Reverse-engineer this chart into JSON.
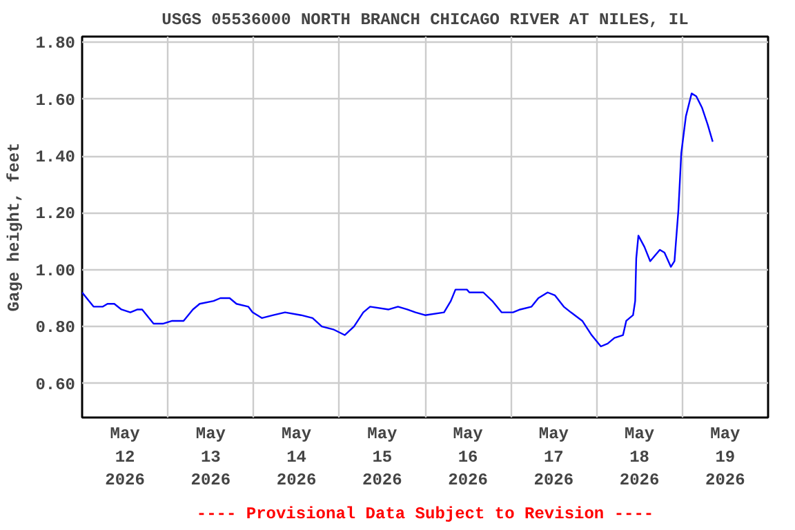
{
  "chart_data": {
    "type": "line",
    "title": "USGS 05536000 NORTH BRANCH CHICAGO RIVER AT NILES, IL",
    "ylabel": "Gage height, feet",
    "annotations": [
      "---- Provisional Data Subject to Revision ----"
    ],
    "x": [
      "2026-05-12T00:00",
      "2026-05-12T01:54",
      "2026-05-12T03:12",
      "2026-05-12T05:48",
      "2026-05-12T07:06",
      "2026-05-12T09:00",
      "2026-05-12T11:00",
      "2026-05-12T13:30",
      "2026-05-12T15:30",
      "2026-05-12T16:48",
      "2026-05-12T20:00",
      "2026-05-12T22:36",
      "2026-05-13T01:12",
      "2026-05-13T04:24",
      "2026-05-13T07:00",
      "2026-05-13T08:54",
      "2026-05-13T12:48",
      "2026-05-13T14:42",
      "2026-05-13T17:18",
      "2026-05-13T19:12",
      "2026-05-13T22:30",
      "2026-05-13T23:42",
      "2026-05-14T02:18",
      "2026-05-14T05:30",
      "2026-05-14T08:48",
      "2026-05-14T13:18",
      "2026-05-14T16:30",
      "2026-05-14T19:06",
      "2026-05-14T22:18",
      "2026-05-15T01:30",
      "2026-05-15T04:06",
      "2026-05-15T06:42",
      "2026-05-15T08:36",
      "2026-05-15T13:48",
      "2026-05-15T16:24",
      "2026-05-15T19:00",
      "2026-05-15T21:18",
      "2026-05-16T00:00",
      "2026-05-16T05:18",
      "2026-05-16T07:12",
      "2026-05-16T08:30",
      "2026-05-16T11:42",
      "2026-05-16T12:24",
      "2026-05-16T16:18",
      "2026-05-16T18:48",
      "2026-05-16T21:24",
      "2026-05-17T00:36",
      "2026-05-17T02:36",
      "2026-05-17T05:48",
      "2026-05-17T07:42",
      "2026-05-17T10:18",
      "2026-05-17T12:18",
      "2026-05-17T14:48",
      "2026-05-17T16:48",
      "2026-05-17T20:00",
      "2026-05-17T22:36",
      "2026-05-18T01:12",
      "2026-05-18T03:06",
      "2026-05-18T05:00",
      "2026-05-18T07:24",
      "2026-05-18T08:18",
      "2026-05-18T10:12",
      "2026-05-18T10:48",
      "2026-05-18T11:06",
      "2026-05-18T11:42",
      "2026-05-18T13:24",
      "2026-05-18T15:00",
      "2026-05-18T17:42",
      "2026-05-18T19:00",
      "2026-05-18T20:48",
      "2026-05-18T21:48",
      "2026-05-18T22:54",
      "2026-05-18T23:42",
      "2026-05-19T01:00",
      "2026-05-19T02:36",
      "2026-05-19T03:54",
      "2026-05-19T05:30",
      "2026-05-19T07:06",
      "2026-05-19T08:30"
    ],
    "series": [
      {
        "color": "#0000ff",
        "values": [
          0.92,
          0.89,
          0.87,
          0.87,
          0.88,
          0.88,
          0.86,
          0.85,
          0.86,
          0.86,
          0.81,
          0.81,
          0.82,
          0.82,
          0.86,
          0.88,
          0.89,
          0.9,
          0.9,
          0.88,
          0.87,
          0.85,
          0.83,
          0.84,
          0.85,
          0.84,
          0.83,
          0.8,
          0.79,
          0.77,
          0.8,
          0.85,
          0.87,
          0.86,
          0.87,
          0.86,
          0.85,
          0.84,
          0.85,
          0.89,
          0.93,
          0.93,
          0.92,
          0.92,
          0.89,
          0.85,
          0.85,
          0.86,
          0.87,
          0.9,
          0.92,
          0.91,
          0.87,
          0.85,
          0.82,
          0.77,
          0.73,
          0.74,
          0.76,
          0.77,
          0.82,
          0.84,
          0.89,
          1.04,
          1.12,
          1.08,
          1.03,
          1.07,
          1.06,
          1.01,
          1.03,
          1.21,
          1.41,
          1.54,
          1.62,
          1.61,
          1.57,
          1.51,
          1.45
        ]
      }
    ],
    "xlim": [
      "2026-05-12T00:00",
      "2026-05-20T00:00"
    ],
    "ylim": [
      0.48,
      1.82
    ],
    "xticks": [
      {
        "value": "2026-05-12T12:00",
        "label": "May\n12\n2026"
      },
      {
        "value": "2026-05-13T12:00",
        "label": "May\n13\n2026"
      },
      {
        "value": "2026-05-14T12:00",
        "label": "May\n14\n2026"
      },
      {
        "value": "2026-05-15T12:00",
        "label": "May\n15\n2026"
      },
      {
        "value": "2026-05-16T12:00",
        "label": "May\n16\n2026"
      },
      {
        "value": "2026-05-17T12:00",
        "label": "May\n17\n2026"
      },
      {
        "value": "2026-05-18T12:00",
        "label": "May\n18\n2026"
      },
      {
        "value": "2026-05-19T12:00",
        "label": "May\n19\n2026"
      },
      {
        "value": "2026-05-13T00:00",
        "label": null
      },
      {
        "value": "2026-05-14T00:00",
        "label": null
      },
      {
        "value": "2026-05-15T00:00",
        "label": null
      },
      {
        "value": "2026-05-16T00:00",
        "label": null
      },
      {
        "value": "2026-05-17T00:00",
        "label": null
      },
      {
        "value": "2026-05-18T00:00",
        "label": null
      },
      {
        "value": "2026-05-19T00:00",
        "label": null
      }
    ],
    "yticks": [
      {
        "value": 0.6,
        "label": "0.60"
      },
      {
        "value": 0.8,
        "label": "0.80"
      },
      {
        "value": 1.0,
        "label": "1.00"
      },
      {
        "value": 1.2,
        "label": "1.20"
      },
      {
        "value": 1.4,
        "label": "1.40"
      },
      {
        "value": 1.6,
        "label": "1.60"
      },
      {
        "value": 1.8,
        "label": "1.80"
      }
    ],
    "grid": true,
    "line_style": "solid",
    "marker": "none"
  }
}
